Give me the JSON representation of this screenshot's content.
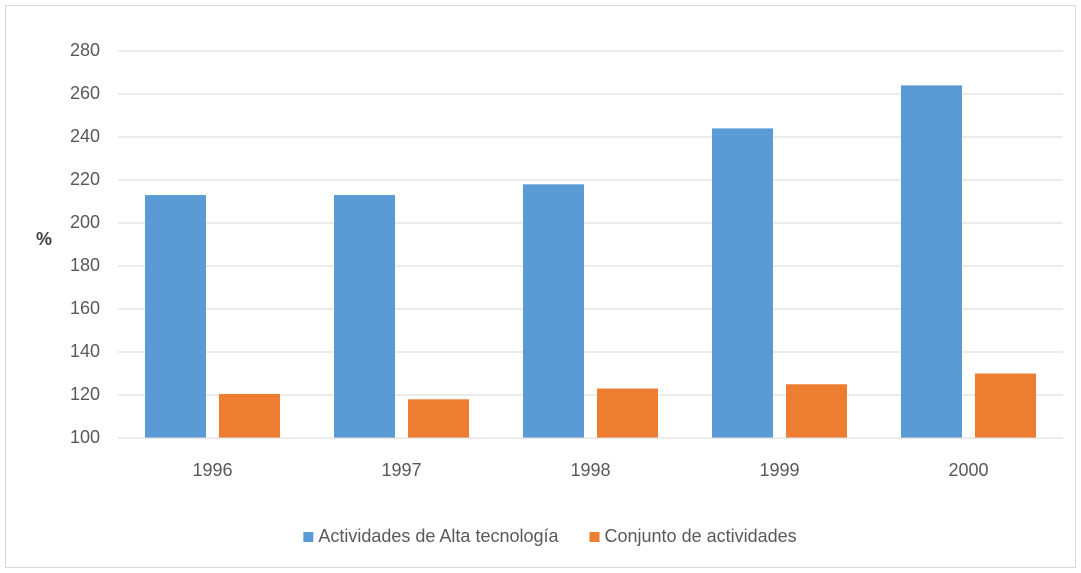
{
  "chart_data": {
    "type": "bar",
    "y_label": "%",
    "categories": [
      "1996",
      "1997",
      "1998",
      "1999",
      "2000"
    ],
    "series": [
      {
        "name": "Actividades de Alta tecnología",
        "color": "#5b9bd5",
        "values": [
          213,
          213,
          218,
          244,
          264
        ]
      },
      {
        "name": "Conjunto de actividades",
        "color": "#ed7d31",
        "values": [
          120.5,
          118,
          123,
          125,
          130
        ]
      }
    ],
    "ylim": [
      100,
      280
    ],
    "yticks": [
      100,
      120,
      140,
      160,
      180,
      200,
      220,
      240,
      260,
      280
    ],
    "grid": true,
    "legend": "bottom"
  }
}
